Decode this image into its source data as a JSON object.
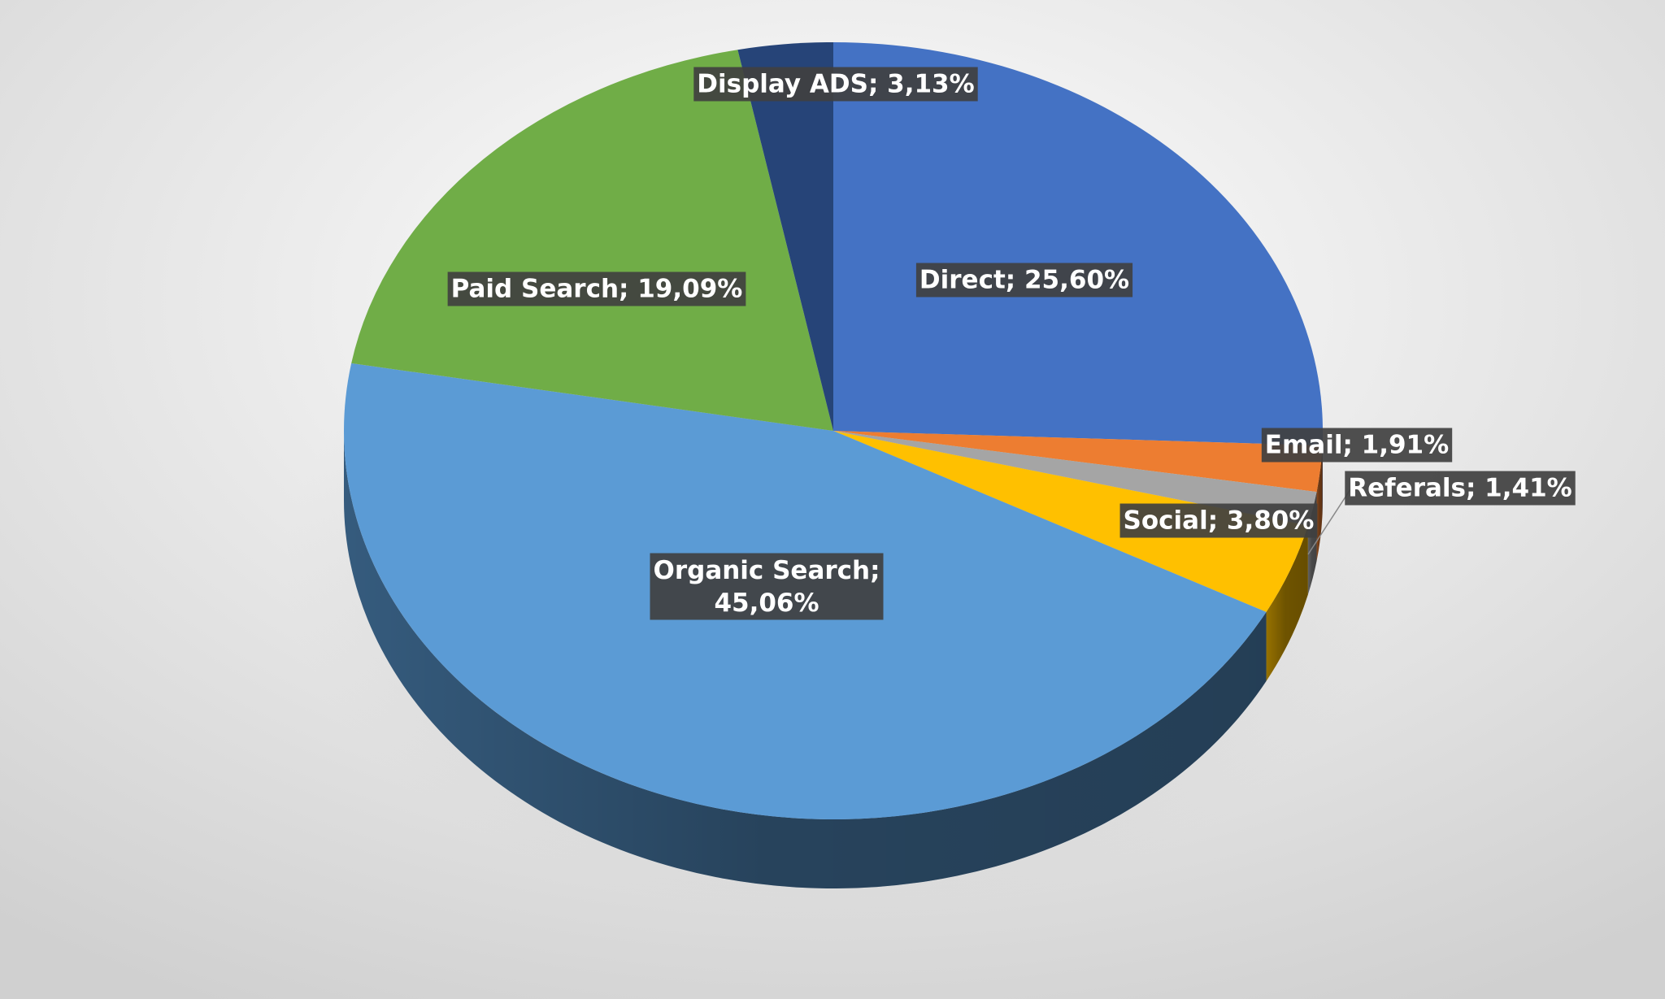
{
  "chart_data": {
    "type": "pie",
    "values": [
      25.6,
      1.91,
      1.41,
      3.8,
      45.06,
      19.09,
      3.13
    ],
    "value_labels": [
      "Direct; 25,60%",
      "Email; 1,91%",
      "Referals; 1,41%",
      "Social; 3,80%",
      "Organic Search; 45,06%",
      "Paid Search; 19,09%",
      "Display ADS; 3,13%"
    ],
    "colors": [
      "#4472c4",
      "#ed7d31",
      "#a5a5a5",
      "#ffc000",
      "#5b9bd5",
      "#70ad47",
      "#264478"
    ]
  }
}
